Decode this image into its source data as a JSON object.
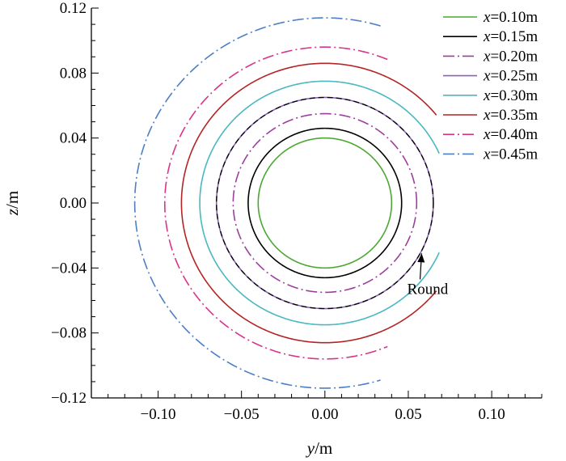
{
  "chart_data": {
    "type": "line",
    "title": "",
    "xlabel": {
      "var": "y",
      "unit": "/m"
    },
    "ylabel": {
      "var": "z",
      "unit": "/m"
    },
    "xlim": [
      -0.14,
      0.13
    ],
    "ylim": [
      -0.12,
      0.12
    ],
    "x_ticks": [
      -0.1,
      -0.05,
      0.0,
      0.05,
      0.1
    ],
    "x_tick_labels": [
      "−0.10",
      "−0.05",
      "0.00",
      "0.05",
      "0.10"
    ],
    "y_ticks": [
      -0.12,
      -0.08,
      -0.04,
      0.0,
      0.04,
      0.08,
      0.12
    ],
    "y_tick_labels": [
      "−0.12",
      "−0.08",
      "−0.04",
      "0.00",
      "0.04",
      "0.08",
      "0.12"
    ],
    "grid": false,
    "legend_position": "top-right",
    "series": [
      {
        "name_var": "x",
        "name_value": "=0.10m",
        "color": "#4aa832",
        "dash": "solid",
        "center": [
          0.0,
          0.0
        ],
        "radius": 0.04,
        "arc_deg": [
          0,
          360
        ]
      },
      {
        "name_var": "x",
        "name_value": "=0.15m",
        "color": "#000000",
        "dash": "solid",
        "center": [
          0.0,
          0.0
        ],
        "radius": 0.046,
        "arc_deg": [
          0,
          360
        ]
      },
      {
        "name_var": "x",
        "name_value": "=0.20m",
        "color": "#9c3f9c",
        "dash": "dashdot",
        "center": [
          0.0,
          0.0
        ],
        "radius": 0.055,
        "arc_deg": [
          0,
          360
        ]
      },
      {
        "name_var": "x",
        "name_value": "=0.25m",
        "color": "#8a63b8",
        "dash": "solid",
        "center": [
          0.0,
          0.0
        ],
        "radius": 0.065,
        "arc_deg": [
          0,
          360
        ]
      },
      {
        "name_var": "x",
        "name_value": "=0.30m",
        "color": "#4ab8c0",
        "dash": "solid",
        "center": [
          0.0,
          0.0
        ],
        "radius": 0.075,
        "arc_deg": [
          24,
          336
        ]
      },
      {
        "name_var": "x",
        "name_value": "=0.35m",
        "color": "#b52424",
        "dash": "solid",
        "center": [
          0.0,
          0.0
        ],
        "radius": 0.086,
        "arc_deg": [
          39,
          321
        ]
      },
      {
        "name_var": "x",
        "name_value": "=0.40m",
        "color": "#d9338a",
        "dash": "dashdot",
        "center": [
          0.0,
          0.0
        ],
        "radius": 0.096,
        "arc_deg": [
          67,
          293
        ]
      },
      {
        "name_var": "x",
        "name_value": "=0.45m",
        "color": "#4d7fc4",
        "dash": "dashdot",
        "center": [
          0.0,
          0.0
        ],
        "radius": 0.114,
        "arc_deg": [
          73,
          287
        ]
      }
    ],
    "reference_curve": {
      "label": "Round",
      "color": "#000000",
      "dash": "dashed",
      "center": [
        0.0,
        0.0
      ],
      "radius": 0.065,
      "arc_deg": [
        0,
        360
      ]
    },
    "annotations": [
      {
        "text": "Round",
        "arrow_to": [
          0.058,
          -0.031
        ],
        "text_at": [
          0.059,
          -0.053
        ]
      }
    ]
  }
}
